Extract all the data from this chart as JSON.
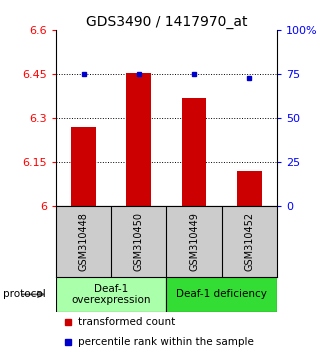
{
  "title": "GDS3490 / 1417970_at",
  "samples": [
    "GSM310448",
    "GSM310450",
    "GSM310449",
    "GSM310452"
  ],
  "transformed_counts": [
    6.27,
    6.455,
    6.37,
    6.12
  ],
  "percentile_ranks": [
    75,
    75,
    75,
    73
  ],
  "ylim_left": [
    6.0,
    6.6
  ],
  "yticks_left": [
    6.0,
    6.15,
    6.3,
    6.45,
    6.6
  ],
  "ytick_labels_left": [
    "6",
    "6.15",
    "6.3",
    "6.45",
    "6.6"
  ],
  "ylim_right": [
    0,
    100
  ],
  "yticks_right": [
    0,
    25,
    50,
    75,
    100
  ],
  "ytick_labels_right": [
    "0",
    "25",
    "50",
    "75",
    "100%"
  ],
  "hlines": [
    6.15,
    6.3,
    6.45
  ],
  "bar_color": "#cc0000",
  "dot_color": "#0000cc",
  "bar_width": 0.45,
  "group1_color": "#aaffaa",
  "group2_color": "#33dd33",
  "sample_bg_color": "#cccccc",
  "groups": [
    {
      "label": "Deaf-1\noverexpression",
      "start": 0,
      "end": 2
    },
    {
      "label": "Deaf-1 deficiency",
      "start": 2,
      "end": 4
    }
  ],
  "protocol_label": "protocol",
  "legend_items": [
    {
      "color": "#cc0000",
      "label": "transformed count"
    },
    {
      "color": "#0000cc",
      "label": "percentile rank within the sample"
    }
  ],
  "title_fontsize": 10,
  "tick_fontsize": 8,
  "sample_fontsize": 7,
  "group_fontsize": 7.5,
  "legend_fontsize": 7.5
}
